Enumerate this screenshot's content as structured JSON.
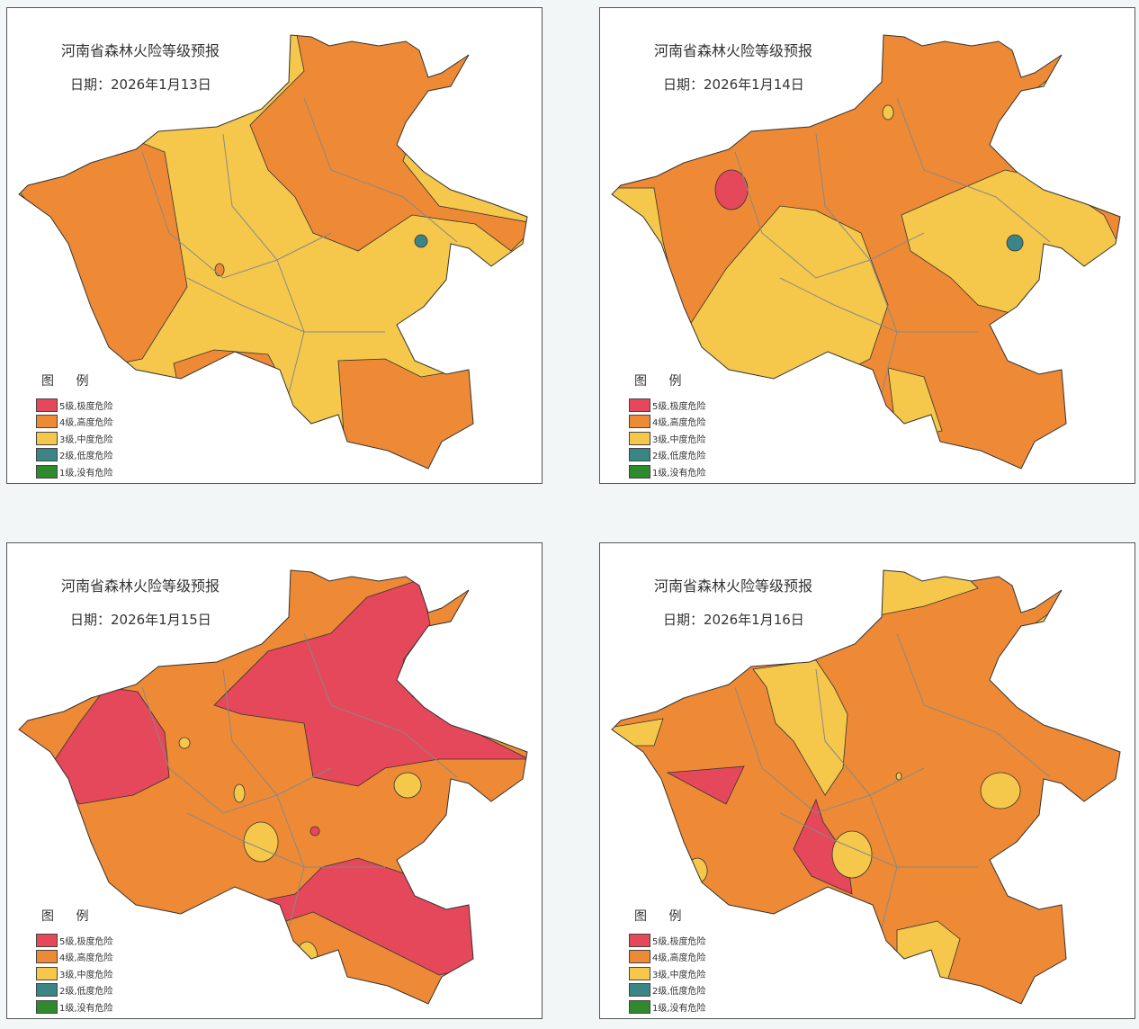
{
  "legend_title": "图 例",
  "legend": [
    {
      "label": "5级,极度危险",
      "color": "#e5485a"
    },
    {
      "label": "4级,高度危险",
      "color": "#ee8a35"
    },
    {
      "label": "3级,中度危险",
      "color": "#f5c84c"
    },
    {
      "label": "2级,低度危险",
      "color": "#3c8586"
    },
    {
      "label": "1级,没有危险",
      "color": "#2f8a2e"
    }
  ],
  "panels": [
    {
      "title": "河南省森林火险等级预报",
      "date": "日期：2026年1月13日"
    },
    {
      "title": "河南省森林火险等级预报",
      "date": "日期：2026年1月14日"
    },
    {
      "title": "河南省森林火险等级预报",
      "date": "日期：2026年1月15日"
    },
    {
      "title": "河南省森林火险等级预报",
      "date": "日期：2026年1月16日"
    }
  ]
}
